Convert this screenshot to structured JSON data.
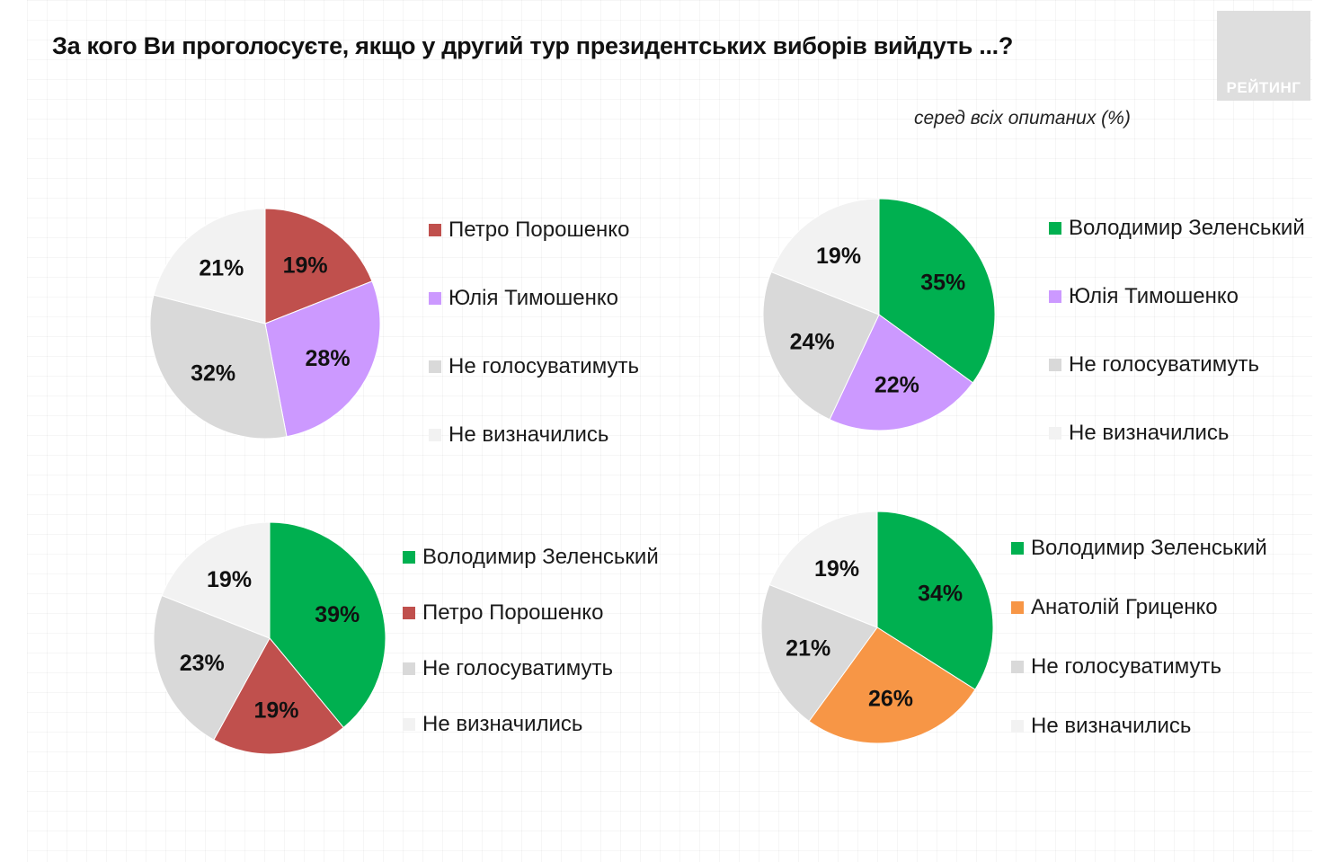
{
  "title": "За кого Ви проголосуєте, якщо у другий тур президентських виборів вийдуть ...?",
  "subtitle": "серед всіх опитаних (%)",
  "logo_text": "РЕЙТИНГ",
  "colors": {
    "poroshenko": "#c0504d",
    "tymoshenko": "#cc99ff",
    "zelensky": "#00b050",
    "hrytsenko": "#f79646",
    "not_vote": "#d9d9d9",
    "undecided": "#f2f2f2"
  },
  "chart_data": [
    {
      "type": "pie",
      "series": [
        {
          "name": "Петро Порошенко",
          "value": 19,
          "label": "19%",
          "color": "#c0504d"
        },
        {
          "name": "Юлія Тимошенко",
          "value": 28,
          "label": "28%",
          "color": "#cc99ff"
        },
        {
          "name": "Не голосуватимуть",
          "value": 32,
          "label": "32%",
          "color": "#d9d9d9"
        },
        {
          "name": "Не визначились",
          "value": 21,
          "label": "21%",
          "color": "#f2f2f2"
        }
      ],
      "legend_position": "right"
    },
    {
      "type": "pie",
      "series": [
        {
          "name": "Володимир Зеленський",
          "value": 35,
          "label": "35%",
          "color": "#00b050"
        },
        {
          "name": "Юлія Тимошенко",
          "value": 22,
          "label": "22%",
          "color": "#cc99ff"
        },
        {
          "name": "Не голосуватимуть",
          "value": 24,
          "label": "24%",
          "color": "#d9d9d9"
        },
        {
          "name": "Не визначились",
          "value": 19,
          "label": "19%",
          "color": "#f2f2f2"
        }
      ],
      "legend_position": "right"
    },
    {
      "type": "pie",
      "series": [
        {
          "name": "Володимир Зеленський",
          "value": 39,
          "label": "39%",
          "color": "#00b050"
        },
        {
          "name": "Петро Порошенко",
          "value": 19,
          "label": "19%",
          "color": "#c0504d"
        },
        {
          "name": "Не голосуватимуть",
          "value": 23,
          "label": "23%",
          "color": "#d9d9d9"
        },
        {
          "name": "Не визначились",
          "value": 19,
          "label": "19%",
          "color": "#f2f2f2"
        }
      ],
      "legend_position": "right"
    },
    {
      "type": "pie",
      "series": [
        {
          "name": "Володимир Зеленський",
          "value": 34,
          "label": "34%",
          "color": "#00b050"
        },
        {
          "name": "Анатолій Гриценко",
          "value": 26,
          "label": "26%",
          "color": "#f79646"
        },
        {
          "name": "Не голосуватимуть",
          "value": 21,
          "label": "21%",
          "color": "#d9d9d9"
        },
        {
          "name": "Не визначились",
          "value": 19,
          "label": "19%",
          "color": "#f2f2f2"
        }
      ],
      "legend_position": "right"
    }
  ]
}
